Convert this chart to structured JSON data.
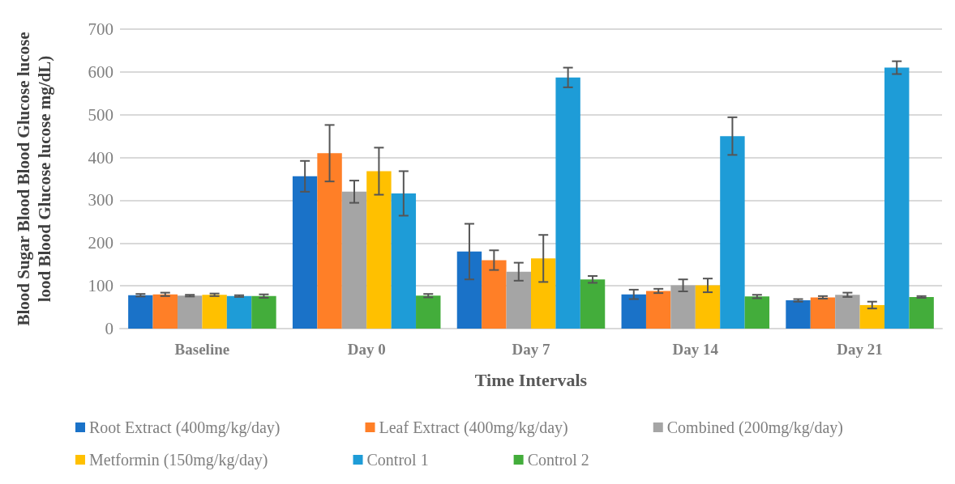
{
  "chart_data": {
    "type": "bar",
    "xlabel": "Time Intervals",
    "ylabel": "Blood Sugar Blood Blood Glucose lucose\nlood Blood Glucose lucose mg/dL)",
    "categories": [
      "Baseline",
      "Day 0",
      "Day 7",
      "Day 14",
      "Day 21"
    ],
    "series": [
      {
        "name": "Root Extract (400mg/kg/day)",
        "color": "#1a72c8",
        "values": [
          78,
          356,
          180,
          80,
          66
        ],
        "errors": [
          3,
          36,
          65,
          11,
          3
        ]
      },
      {
        "name": "Leaf Extract (400mg/kg/day)",
        "color": "#ff7f27",
        "values": [
          80,
          410,
          160,
          88,
          73
        ],
        "errors": [
          4,
          66,
          23,
          5,
          3
        ]
      },
      {
        "name": "Combined (200mg/kg/day)",
        "color": "#a5a5a5",
        "values": [
          77,
          320,
          133,
          101,
          79
        ],
        "errors": [
          2,
          26,
          21,
          14,
          5
        ]
      },
      {
        "name": "Metformin (150mg/kg/day)",
        "color": "#ffc000",
        "values": [
          79,
          368,
          164,
          101,
          55
        ],
        "errors": [
          3,
          55,
          55,
          16,
          8
        ]
      },
      {
        "name": "Control 1",
        "color": "#1e9cd7",
        "values": [
          76,
          316,
          587,
          450,
          610
        ],
        "errors": [
          2,
          52,
          23,
          44,
          15
        ]
      },
      {
        "name": "Control 2",
        "color": "#43ad3b",
        "values": [
          76,
          77,
          115,
          75,
          74
        ],
        "errors": [
          4,
          4,
          8,
          4,
          2
        ]
      }
    ],
    "ylim": [
      0,
      700
    ],
    "yticks": [
      0,
      100,
      200,
      300,
      400,
      500,
      600,
      700
    ],
    "grid": "y",
    "legend": "bottom"
  }
}
